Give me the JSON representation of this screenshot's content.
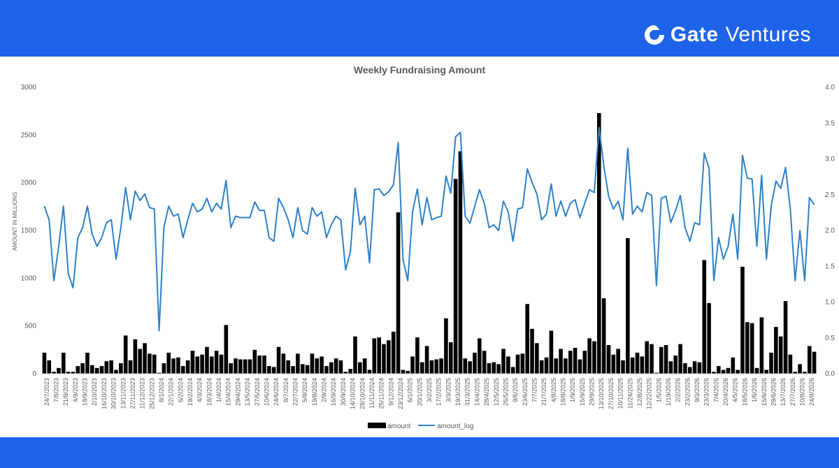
{
  "brand": {
    "logo_icon": "gate-logo-icon",
    "name": "Gate",
    "sub": "Ventures"
  },
  "colors": {
    "band": "#1e63ea",
    "bars": "#000000",
    "line": "#2e80c8",
    "grid": "#d9d9d9",
    "text": "#595959"
  },
  "chart_data": {
    "type": "bar+line",
    "title": "Weekly Fundraising Amount",
    "ylabel": "AMOUNT IN MILLIONS",
    "ylim": [
      0,
      3000
    ],
    "y2lim": [
      0,
      4
    ],
    "yticks": [
      "0",
      "500",
      "1000",
      "1500",
      "2000",
      "2500",
      "3000"
    ],
    "y2ticks": [
      "0.0",
      "0.5",
      "1.0",
      "1.5",
      "2.0",
      "2.5",
      "3.0",
      "3.5",
      "4.0"
    ],
    "grid": false,
    "legend_position": "bottom",
    "x_labels": [
      "24/7/2023",
      "7/8/2023",
      "21/8/2023",
      "4/9/2023",
      "18/9/2023",
      "2/10/2023",
      "16/10/2023",
      "30/10/2023",
      "13/11/2023",
      "27/11/2023",
      "11/12/2023",
      "25/12/2023",
      "8/1/2024",
      "22/1/2024",
      "6/2/2024",
      "19/2/2024",
      "4/3/2024",
      "18/3/2024",
      "1/4/2024",
      "15/4/2024",
      "29/4/2024",
      "13/5/2024",
      "27/5/2024",
      "10/6/2024",
      "24/6/2024",
      "8/7/2024",
      "22/7/2024",
      "5/8/2024",
      "19/8/2024",
      "2/9/2024",
      "16/9/2024",
      "30/9/2024",
      "14/10/2024",
      "28/10/2024",
      "11/11/2024",
      "25/11/2024",
      "9/12/2024",
      "23/12/2024",
      "6/1/2025",
      "20/1/2025",
      "3/2/2025",
      "17/2/2025",
      "3/3/2025",
      "19/3/2025",
      "31/3/2025",
      "14/4/2025",
      "28/4/2025",
      "12/5/2025",
      "26/5/2025",
      "9/6/2025",
      "23/6/2025",
      "7/7/2025",
      "21/7/2025",
      "4/8/2025",
      "18/8/2025",
      "1/9/2025",
      "15/9/2025",
      "29/9/2025",
      "13/10/2025",
      "27/10/2025",
      "10/11/2025",
      "11/24/2025",
      "12/8/2025",
      "12/22/2025",
      "1/5/2026",
      "1/19/2026",
      "2/2/2026",
      "23/2/2026",
      "9/3/2026",
      "23/3/2026",
      "7/4/2026",
      "20/4/2026",
      "4/5/2026",
      "18/5/2026",
      "1/6/2026",
      "15/6/2026",
      "29/6/2026",
      "13/7/2026",
      "27/7/2026",
      "10/8/2026",
      "24/8/2026"
    ],
    "series": [
      {
        "name": "amount",
        "type": "bar",
        "axis": "left",
        "values": [
          220,
          140,
          20,
          60,
          220,
          20,
          20,
          80,
          110,
          220,
          90,
          60,
          80,
          130,
          140,
          40,
          110,
          400,
          140,
          360,
          260,
          320,
          210,
          200,
          10,
          110,
          220,
          160,
          170,
          80,
          140,
          240,
          180,
          200,
          280,
          180,
          240,
          200,
          510,
          110,
          160,
          150,
          150,
          150,
          250,
          190,
          190,
          80,
          70,
          280,
          210,
          140,
          80,
          210,
          100,
          90,
          210,
          160,
          180,
          80,
          120,
          160,
          140,
          20,
          50,
          390,
          120,
          160,
          40,
          370,
          380,
          310,
          350,
          440,
          1690,
          40,
          30,
          180,
          380,
          120,
          290,
          140,
          150,
          160,
          580,
          330,
          2040,
          2330,
          160,
          130,
          220,
          370,
          240,
          110,
          120,
          100,
          260,
          180,
          70,
          200,
          210,
          730,
          470,
          320,
          140,
          170,
          450,
          160,
          260,
          160,
          240,
          270,
          150,
          240,
          370,
          340,
          2730,
          790,
          300,
          200,
          260,
          140,
          1420,
          170,
          220,
          180,
          340,
          310,
          10,
          280,
          300,
          130,
          190,
          310,
          110,
          70,
          130,
          120,
          1190,
          740,
          20,
          80,
          40,
          60,
          170,
          40,
          1120,
          540,
          530,
          60,
          590,
          40,
          220,
          490,
          390,
          760,
          200,
          20,
          100,
          20,
          290,
          230
        ]
      },
      {
        "name": "amount_log",
        "type": "line",
        "axis": "right",
        "values": [
          2.34,
          2.15,
          1.3,
          1.78,
          2.34,
          1.4,
          1.2,
          1.9,
          2.04,
          2.34,
          1.95,
          1.78,
          1.9,
          2.11,
          2.15,
          1.6,
          2.04,
          2.6,
          2.15,
          2.55,
          2.42,
          2.51,
          2.32,
          2.3,
          0.6,
          2.04,
          2.34,
          2.2,
          2.23,
          1.9,
          2.15,
          2.38,
          2.26,
          2.3,
          2.45,
          2.26,
          2.38,
          2.3,
          2.7,
          2.04,
          2.2,
          2.18,
          2.18,
          2.18,
          2.4,
          2.28,
          2.28,
          1.9,
          1.85,
          2.45,
          2.32,
          2.15,
          1.9,
          2.32,
          2.0,
          1.95,
          2.32,
          2.2,
          2.26,
          1.9,
          2.08,
          2.2,
          2.15,
          1.45,
          1.7,
          2.59,
          2.08,
          2.2,
          1.55,
          2.57,
          2.58,
          2.49,
          2.54,
          2.64,
          3.23,
          1.6,
          1.3,
          2.26,
          2.58,
          2.08,
          2.46,
          2.15,
          2.18,
          2.2,
          2.76,
          2.52,
          3.31,
          3.37,
          2.2,
          2.1,
          2.34,
          2.57,
          2.38,
          2.04,
          2.08,
          2.0,
          2.41,
          2.26,
          1.85,
          2.3,
          2.32,
          2.86,
          2.67,
          2.51,
          2.15,
          2.23,
          2.65,
          2.2,
          2.41,
          2.2,
          2.38,
          2.43,
          2.18,
          2.38,
          2.57,
          2.53,
          3.44,
          2.9,
          2.48,
          2.3,
          2.41,
          2.15,
          3.15,
          2.23,
          2.34,
          2.26,
          2.53,
          2.49,
          1.23,
          2.45,
          2.48,
          2.11,
          2.28,
          2.49,
          2.04,
          1.85,
          2.11,
          2.08,
          3.08,
          2.87,
          1.3,
          1.9,
          1.6,
          1.78,
          2.23,
          1.6,
          3.05,
          2.73,
          2.72,
          1.78,
          2.77,
          1.6,
          2.34,
          2.69,
          2.59,
          2.88,
          2.3,
          1.3,
          2.0,
          1.3,
          2.46,
          2.36
        ]
      }
    ],
    "legend": [
      "amount",
      "amount_log"
    ]
  }
}
